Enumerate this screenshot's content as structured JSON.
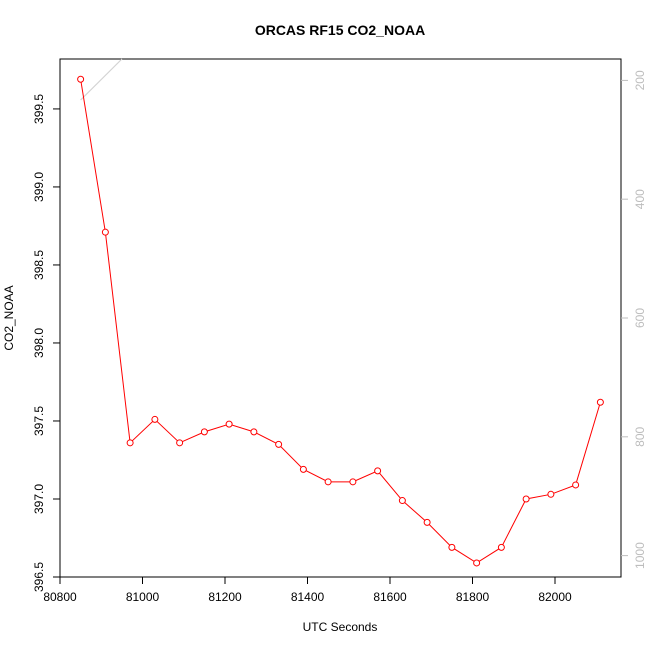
{
  "chart_data": {
    "type": "line",
    "title": "ORCAS RF15 CO2_NOAA",
    "xlabel": "UTC Seconds",
    "ylabel": "CO2_NOAA",
    "xlim": [
      80800,
      82160
    ],
    "ylim": [
      396.5,
      399.82
    ],
    "x_ticks": [
      "80800",
      "81000",
      "81200",
      "81400",
      "81600",
      "81800",
      "82000"
    ],
    "y_ticks": [
      "396.5",
      "397.0",
      "397.5",
      "398.0",
      "398.5",
      "399.0",
      "399.5"
    ],
    "y2_ticks": [
      "200",
      "400",
      "600",
      "800",
      "1000"
    ],
    "y2lim": [
      164,
      1036
    ],
    "series": [
      {
        "color": "#ff0000",
        "marker": "open-circle",
        "x": [
          80850,
          80910,
          80970,
          81030,
          81090,
          81150,
          81210,
          81270,
          81330,
          81390,
          81450,
          81510,
          81570,
          81630,
          81690,
          81750,
          81810,
          81870,
          81930,
          81990,
          82050,
          82110
        ],
        "y": [
          399.69,
          398.71,
          397.36,
          397.51,
          397.36,
          397.43,
          397.48,
          397.43,
          397.35,
          397.19,
          397.11,
          397.11,
          397.18,
          396.99,
          396.85,
          396.69,
          396.59,
          396.69,
          397.0,
          397.03,
          397.09,
          397.62
        ]
      },
      {
        "color": "#d3d3d3",
        "axis": "right",
        "x": [
          80850,
          80950
        ],
        "y": [
          233,
          164
        ]
      }
    ]
  }
}
